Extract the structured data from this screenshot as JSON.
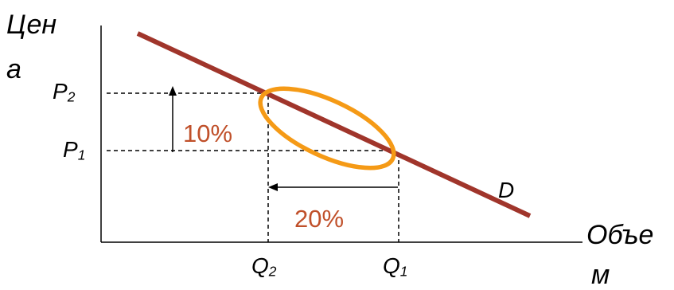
{
  "y_axis_label": {
    "line1": "Цен",
    "line2": "а"
  },
  "x_axis_label": {
    "line1": "Объе",
    "line2": "м"
  },
  "price_ticks": [
    {
      "base": "P",
      "sub": "2"
    },
    {
      "base": "P",
      "sub": "1"
    }
  ],
  "quantity_ticks": [
    {
      "base": "Q",
      "sub": "2"
    },
    {
      "base": "Q",
      "sub": "1"
    }
  ],
  "curve_label": "D",
  "price_change": "10%",
  "quantity_change": "20%",
  "colors": {
    "demand_line": "#a0352b",
    "highlight_ellipse": "#f59a16",
    "percent_text": "#c0502a",
    "axes": "#000000"
  }
}
